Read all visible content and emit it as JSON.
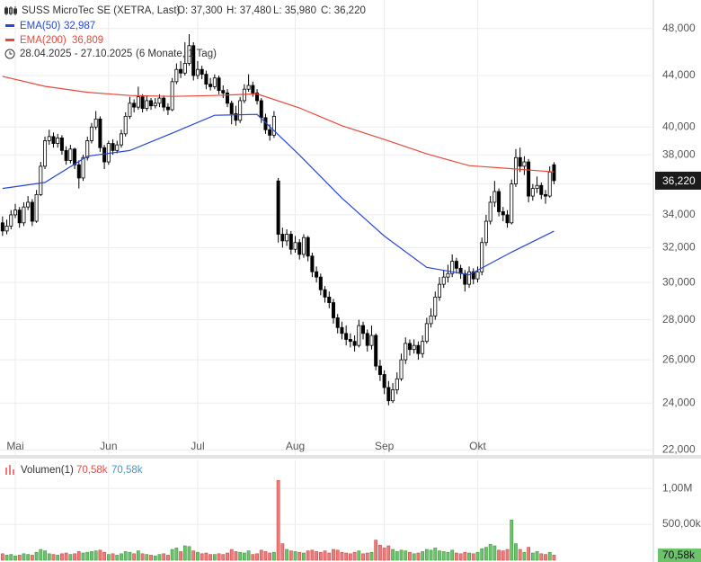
{
  "chart_data": [
    {
      "type": "candlestick",
      "title": "SUSS MicroTec SE (XETRA, Last)",
      "ohlc_labels": [
        "O: 37,300",
        "H: 37,480",
        "L: 35,980",
        "C: 36,220"
      ],
      "period": "28.04.2025 - 27.10.2025",
      "period_note": "(6 Monate, 1 Tag)",
      "last_tag": "36,220",
      "log_scale": true,
      "grid": true,
      "up_color": "#ffffff",
      "down_color": "#000000",
      "xlim": [
        -0.6,
        153.0
      ],
      "xticks": [
        {
          "value": 3,
          "label": "Mai"
        },
        {
          "value": 25,
          "label": "Jun"
        },
        {
          "value": 46,
          "label": "Jul"
        },
        {
          "value": 69,
          "label": "Aug"
        },
        {
          "value": 90,
          "label": "Sep"
        },
        {
          "value": 112,
          "label": "Okt"
        }
      ],
      "ylim": [
        21800,
        50600
      ],
      "yticks": [
        {
          "value": 22000,
          "label": "22,000"
        },
        {
          "value": 24000,
          "label": "24,000"
        },
        {
          "value": 26000,
          "label": "26,000"
        },
        {
          "value": 28000,
          "label": "28,000"
        },
        {
          "value": 30000,
          "label": "30,000"
        },
        {
          "value": 32000,
          "label": "32,000"
        },
        {
          "value": 34000,
          "label": "34,000"
        },
        {
          "value": 36000,
          "label": "36,000"
        },
        {
          "value": 38000,
          "label": "38,000"
        },
        {
          "value": 40000,
          "label": "40,000"
        },
        {
          "value": 44000,
          "label": "44,000"
        },
        {
          "value": 48000,
          "label": "48,000"
        }
      ],
      "open": [
        33500,
        33000,
        33300,
        34000,
        34300,
        33500,
        34500,
        34800,
        33600,
        35300,
        37200,
        39000,
        39300,
        38800,
        39200,
        38300,
        37600,
        38400,
        37300,
        36400,
        37800,
        39000,
        40000,
        40600,
        38500,
        37500,
        38800,
        38300,
        38700,
        39500,
        40800,
        41800,
        41500,
        42300,
        41400,
        42000,
        41600,
        41800,
        42200,
        41500,
        41300,
        43500,
        44500,
        44200,
        45000,
        46500,
        44000,
        44500,
        44100,
        43300,
        43100,
        43800,
        42800,
        42600,
        41800,
        41000,
        40500,
        42000,
        42900,
        43200,
        42600,
        42000,
        40700,
        39800,
        39400,
        36200,
        32800,
        32400,
        32800,
        31900,
        32300,
        31600,
        32600,
        31500,
        30600,
        30300,
        29600,
        29200,
        28900,
        28100,
        27600,
        27300,
        27000,
        26900,
        26700,
        27700,
        27300,
        26700,
        27200,
        25700,
        25300,
        24700,
        24100,
        24600,
        25100,
        26000,
        26800,
        26500,
        26700,
        26300,
        26900,
        27800,
        28200,
        29200,
        29900,
        30300,
        30500,
        31200,
        30800,
        30500,
        29900,
        30600,
        30200,
        30600,
        32300,
        33600,
        34800,
        35500,
        34200,
        34000,
        33500,
        36000,
        37800,
        37200,
        37500,
        35200,
        35700,
        35900,
        35300,
        35200,
        37300
      ],
      "high": [
        33900,
        33700,
        34300,
        34700,
        34500,
        34800,
        35200,
        35000,
        35600,
        37500,
        39300,
        39800,
        39600,
        39500,
        39400,
        38600,
        38700,
        38500,
        37600,
        38000,
        39300,
        40300,
        41200,
        40800,
        38700,
        39000,
        39100,
        39000,
        39800,
        41100,
        42300,
        42100,
        43100,
        42500,
        42400,
        42200,
        42200,
        42500,
        42400,
        41800,
        43800,
        45000,
        45200,
        46800,
        47500,
        46800,
        45200,
        44800,
        44400,
        43800,
        44100,
        44000,
        43200,
        42900,
        42000,
        41600,
        42300,
        43300,
        44100,
        43500,
        42900,
        42200,
        41000,
        40200,
        41200,
        36400,
        33200,
        33100,
        33000,
        32700,
        32500,
        32800,
        32700,
        31700,
        30900,
        30500,
        29800,
        29500,
        29100,
        28300,
        27900,
        27700,
        27300,
        27200,
        28000,
        27900,
        27500,
        27700,
        27300,
        26000,
        25500,
        25000,
        24900,
        25400,
        26300,
        27100,
        27000,
        27000,
        26900,
        27200,
        28100,
        28600,
        29500,
        30300,
        30700,
        31000,
        31600,
        31400,
        31000,
        30700,
        30900,
        30800,
        30900,
        32600,
        34000,
        35200,
        36200,
        35700,
        34500,
        34300,
        36300,
        38400,
        38500,
        37900,
        37700,
        36000,
        36500,
        36100,
        35600,
        37200,
        37480
      ],
      "low": [
        32700,
        32800,
        33100,
        33800,
        33200,
        33300,
        34300,
        33300,
        33500,
        35200,
        37000,
        38700,
        38500,
        38500,
        38000,
        37300,
        37400,
        37000,
        35700,
        36200,
        37600,
        38800,
        39800,
        38200,
        37000,
        37300,
        38000,
        38100,
        38500,
        39300,
        40600,
        41100,
        41300,
        41100,
        41200,
        41300,
        41400,
        41500,
        41200,
        40900,
        41200,
        43300,
        43800,
        44000,
        44800,
        43600,
        43700,
        43700,
        42900,
        42800,
        42900,
        42500,
        42200,
        41500,
        40200,
        40100,
        40300,
        41800,
        42700,
        42300,
        41700,
        40300,
        39500,
        39000,
        39200,
        32300,
        32000,
        32100,
        31600,
        31700,
        31300,
        31400,
        31200,
        30300,
        30000,
        29300,
        28900,
        28600,
        27800,
        27300,
        27000,
        26700,
        26600,
        26400,
        26600,
        27000,
        26400,
        26500,
        25500,
        25000,
        24400,
        23900,
        24000,
        24400,
        25000,
        25800,
        26200,
        26300,
        26000,
        26100,
        26800,
        27600,
        28000,
        29000,
        29700,
        30000,
        30300,
        30500,
        30200,
        29500,
        29700,
        29900,
        30000,
        30400,
        32100,
        33400,
        34500,
        33900,
        33600,
        33200,
        33400,
        35800,
        36800,
        36600,
        34800,
        34900,
        35400,
        35000,
        34700,
        35100,
        35980
      ],
      "close": [
        33000,
        33300,
        34000,
        34300,
        33500,
        34500,
        34800,
        33600,
        35300,
        37200,
        39000,
        39300,
        38800,
        39200,
        38300,
        37600,
        38400,
        37300,
        36400,
        37800,
        39000,
        40000,
        40600,
        38500,
        37500,
        38800,
        38300,
        38700,
        39500,
        40800,
        41800,
        41500,
        42300,
        41400,
        42000,
        41600,
        41800,
        42200,
        41500,
        41300,
        43500,
        44500,
        44200,
        45000,
        46500,
        44000,
        44500,
        44100,
        43300,
        43100,
        43800,
        42800,
        42600,
        41800,
        41000,
        40500,
        42000,
        42900,
        43200,
        42600,
        42000,
        40700,
        39800,
        39400,
        40800,
        32800,
        32400,
        32800,
        31900,
        32300,
        31600,
        32600,
        31500,
        30600,
        30300,
        29600,
        29200,
        28900,
        28100,
        27600,
        27300,
        27000,
        26900,
        26700,
        27700,
        27300,
        26700,
        27200,
        25700,
        25300,
        24700,
        24100,
        24600,
        25100,
        26000,
        26800,
        26500,
        26700,
        26300,
        26900,
        27800,
        28200,
        29200,
        29900,
        30300,
        30500,
        31200,
        30800,
        30500,
        29900,
        30600,
        30200,
        30600,
        32300,
        33600,
        34800,
        35500,
        34200,
        34000,
        33500,
        36000,
        37800,
        37200,
        37500,
        35200,
        35700,
        35900,
        35300,
        35200,
        36800,
        36220
      ],
      "lines": [
        {
          "name": "EMA(50)",
          "legend_value": "32,987",
          "color": "#2846d8",
          "x": [
            0,
            10,
            20,
            30,
            40,
            50,
            60,
            70,
            80,
            90,
            100,
            110,
            120,
            130
          ],
          "values": [
            35700,
            36100,
            37900,
            38300,
            39550,
            40880,
            40950,
            37980,
            35070,
            32690,
            30850,
            30430,
            31730,
            32987
          ]
        },
        {
          "name": "EMA(200)",
          "legend_value": "36,809",
          "color": "#e8483c",
          "x": [
            0,
            10,
            20,
            30,
            40,
            50,
            60,
            70,
            80,
            90,
            100,
            110,
            120,
            130
          ],
          "values": [
            43930,
            43130,
            42660,
            42400,
            42330,
            42400,
            42530,
            41440,
            40100,
            39090,
            38060,
            37240,
            37030,
            36809
          ]
        }
      ]
    },
    {
      "type": "bar",
      "name": "Volumen(1)",
      "legend_values": [
        "70,58k",
        "70,58k"
      ],
      "last_tag": "70,58k",
      "up_color": "#6cc36c",
      "down_color": "#ec7b7b",
      "ylim": [
        0,
        1390000
      ],
      "yticks": [
        {
          "value": 500000,
          "label": "500,00k"
        },
        {
          "value": 1000000,
          "label": "1,00M"
        }
      ],
      "values": [
        90000,
        70000,
        80000,
        60000,
        70000,
        90000,
        80000,
        70000,
        110000,
        150000,
        130000,
        90000,
        80000,
        70000,
        90000,
        100000,
        80000,
        90000,
        120000,
        100000,
        110000,
        120000,
        130000,
        140000,
        110000,
        80000,
        90000,
        70000,
        90000,
        120000,
        110000,
        90000,
        130000,
        90000,
        80000,
        70000,
        60000,
        80000,
        90000,
        70000,
        150000,
        170000,
        120000,
        200000,
        190000,
        130000,
        110000,
        90000,
        100000,
        80000,
        80000,
        90000,
        80000,
        100000,
        150000,
        120000,
        110000,
        100000,
        130000,
        80000,
        90000,
        140000,
        120000,
        100000,
        110000,
        1110000,
        230000,
        150000,
        130000,
        120000,
        110000,
        100000,
        130000,
        140000,
        120000,
        110000,
        130000,
        100000,
        150000,
        140000,
        110000,
        100000,
        90000,
        110000,
        130000,
        90000,
        100000,
        110000,
        280000,
        210000,
        170000,
        200000,
        150000,
        120000,
        140000,
        130000,
        110000,
        90000,
        100000,
        120000,
        150000,
        140000,
        170000,
        130000,
        120000,
        110000,
        140000,
        100000,
        90000,
        110000,
        100000,
        90000,
        110000,
        160000,
        180000,
        220000,
        200000,
        140000,
        130000,
        150000,
        560000,
        230000,
        150000,
        110000,
        180000,
        100000,
        120000,
        90000,
        80000,
        110000,
        70580
      ]
    }
  ]
}
